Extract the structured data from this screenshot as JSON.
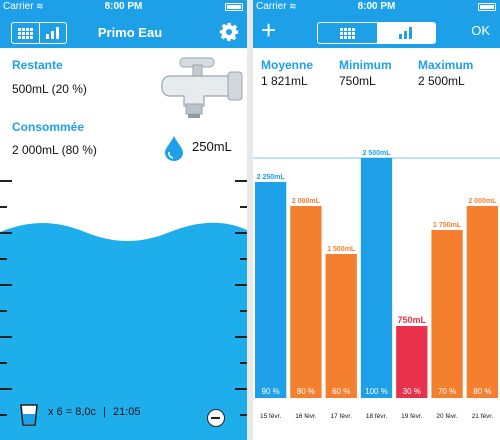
{
  "status": {
    "carrier": "Carrier",
    "wifi": "wifi-icon",
    "time": "8:00 PM"
  },
  "colors": {
    "blue": "#1ea0e8",
    "orange": "#f47f2f",
    "red": "#e8314a",
    "water": "#1eaeec"
  },
  "left": {
    "nav": {
      "title": "Primo Eau",
      "seg": [
        "table-icon",
        "bar-chart-icon"
      ],
      "settings": "gear-icon"
    },
    "remaining_label": "Restante",
    "remaining_value": "500mL (20 %)",
    "consumed_label": "Consommée",
    "consumed_value": "2 000mL (80 %)",
    "drop_value": "250mL",
    "fill_percent": 80,
    "bottom_text": "x 6 = 8,0c",
    "separator": "|",
    "bottom_time": "21:05"
  },
  "right": {
    "nav": {
      "add": "+",
      "ok": "OK",
      "seg": [
        "table-icon",
        "bar-chart-icon"
      ]
    },
    "stats": [
      {
        "label": "Moyenne",
        "value": "1 821mL"
      },
      {
        "label": "Minimum",
        "value": "750mL"
      },
      {
        "label": "Maximum",
        "value": "2 500mL"
      }
    ]
  },
  "chart_data": {
    "type": "bar",
    "categories": [
      "15 févr.",
      "16 févr.",
      "17 févr.",
      "18 févr.",
      "19 févr.",
      "20 févr.",
      "21 févr."
    ],
    "values": [
      2250,
      2000,
      1500,
      2500,
      750,
      1750,
      2000
    ],
    "value_labels": [
      "2 250mL",
      "2 000mL",
      "1 500mL",
      "2 500mL",
      "750mL",
      "1 750mL",
      "2 000mL"
    ],
    "percent_labels": [
      "90 %",
      "80 %",
      "60 %",
      "100 %",
      "30 %",
      "70 %",
      "80 %"
    ],
    "bar_colors": [
      "#1ea0e8",
      "#f47f2f",
      "#f47f2f",
      "#1ea0e8",
      "#e8314a",
      "#f47f2f",
      "#f47f2f"
    ],
    "reference_line": 2500,
    "reference_label": "2 500mL",
    "ylim": [
      0,
      2500
    ]
  }
}
